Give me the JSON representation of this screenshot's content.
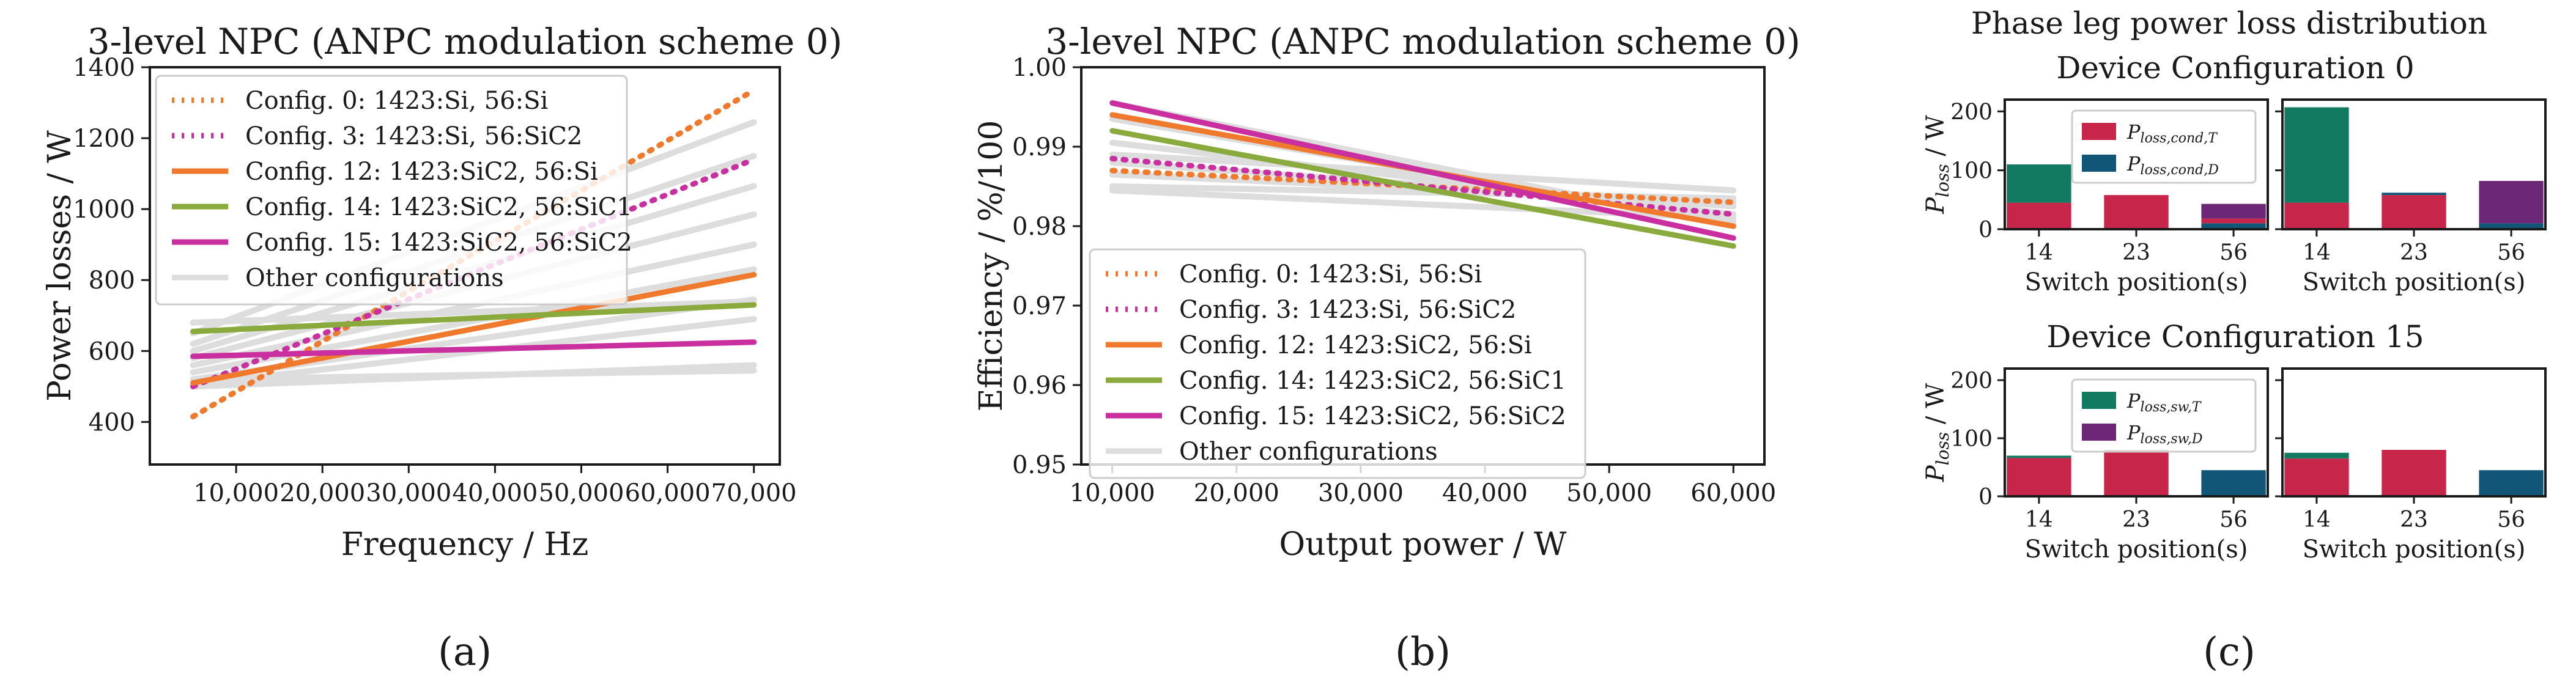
{
  "colors": {
    "orange": "#ef7a2d",
    "magenta": "#c92f9f",
    "green": "#8aaa3e",
    "grey": "#dddddd",
    "crimson": "#c7254a",
    "teal": "#127a60",
    "navy": "#115577",
    "purple": "#6c2877"
  },
  "chart_data": [
    {
      "id": "a",
      "type": "line",
      "panel_label": "(a)",
      "title": "3-level NPC (ANPC modulation scheme 0)",
      "xlabel": "Frequency / Hz",
      "ylabel": "Power losses / W",
      "xlim": [
        0,
        73000
      ],
      "ylim": [
        280,
        1400
      ],
      "xticks": [
        10000,
        20000,
        30000,
        40000,
        50000,
        60000,
        70000
      ],
      "xtick_labels": [
        "10,000",
        "20,000",
        "30,000",
        "40,000",
        "50,000",
        "60,000",
        "70,000"
      ],
      "yticks": [
        400,
        600,
        800,
        1000,
        1200,
        1400
      ],
      "ytick_labels": [
        "400",
        "600",
        "800",
        "1000",
        "1200",
        "1400"
      ],
      "grid": false,
      "legend_position": "upper-left",
      "legend": [
        {
          "label": "Config. 0: 1423:Si, 56:Si",
          "color": "orange",
          "style": "dotted"
        },
        {
          "label": "Config. 3: 1423:Si, 56:SiC2",
          "color": "magenta",
          "style": "dotted"
        },
        {
          "label": "Config. 12: 1423:SiC2, 56:Si",
          "color": "orange",
          "style": "solid"
        },
        {
          "label": "Config. 14: 1423:SiC2, 56:SiC1",
          "color": "green",
          "style": "solid"
        },
        {
          "label": "Config. 15: 1423:SiC2, 56:SiC2",
          "color": "magenta",
          "style": "solid"
        },
        {
          "label": "Other configurations",
          "color": "grey",
          "style": "solid"
        }
      ],
      "background_series": [
        {
          "x": [
            5000,
            70000
          ],
          "y": [
            650,
            1245
          ]
        },
        {
          "x": [
            5000,
            70000
          ],
          "y": [
            620,
            1150
          ]
        },
        {
          "x": [
            5000,
            70000
          ],
          "y": [
            600,
            1065
          ]
        },
        {
          "x": [
            5000,
            70000
          ],
          "y": [
            580,
            985
          ]
        },
        {
          "x": [
            5000,
            70000
          ],
          "y": [
            560,
            900
          ]
        },
        {
          "x": [
            5000,
            70000
          ],
          "y": [
            540,
            830
          ]
        },
        {
          "x": [
            5000,
            70000
          ],
          "y": [
            520,
            745
          ]
        },
        {
          "x": [
            5000,
            70000
          ],
          "y": [
            505,
            690
          ]
        },
        {
          "x": [
            5000,
            70000
          ],
          "y": [
            500,
            560
          ]
        },
        {
          "x": [
            5000,
            70000
          ],
          "y": [
            520,
            545
          ]
        },
        {
          "x": [
            5000,
            70000
          ],
          "y": [
            680,
            740
          ]
        }
      ],
      "series": [
        {
          "color": "orange",
          "style": "dotted",
          "x": [
            5000,
            70000
          ],
          "y": [
            415,
            1335
          ]
        },
        {
          "color": "magenta",
          "style": "dotted",
          "x": [
            5000,
            70000
          ],
          "y": [
            500,
            1140
          ]
        },
        {
          "color": "orange",
          "style": "solid",
          "x": [
            5000,
            70000
          ],
          "y": [
            510,
            815
          ]
        },
        {
          "color": "green",
          "style": "solid",
          "x": [
            5000,
            70000
          ],
          "y": [
            655,
            730
          ]
        },
        {
          "color": "magenta",
          "style": "solid",
          "x": [
            5000,
            70000
          ],
          "y": [
            585,
            625
          ]
        }
      ]
    },
    {
      "id": "b",
      "type": "line",
      "panel_label": "(b)",
      "title": "3-level NPC (ANPC modulation scheme 0)",
      "xlabel": "Output power / W",
      "ylabel": "Efficiency / %/100",
      "xlim": [
        7500,
        62500
      ],
      "ylim": [
        0.95,
        1.0
      ],
      "xticks": [
        10000,
        20000,
        30000,
        40000,
        50000,
        60000
      ],
      "xtick_labels": [
        "10,000",
        "20,000",
        "30,000",
        "40,000",
        "50,000",
        "60,000"
      ],
      "yticks": [
        0.95,
        0.96,
        0.97,
        0.98,
        0.99,
        1.0
      ],
      "ytick_labels": [
        "0.95",
        "0.96",
        "0.97",
        "0.98",
        "0.99",
        "1.00"
      ],
      "grid": false,
      "legend_position": "lower-left",
      "legend": [
        {
          "label": "Config. 0: 1423:Si, 56:Si",
          "color": "orange",
          "style": "dotted"
        },
        {
          "label": "Config. 3: 1423:Si, 56:SiC2",
          "color": "magenta",
          "style": "dotted"
        },
        {
          "label": "Config. 12: 1423:SiC2, 56:Si",
          "color": "orange",
          "style": "solid"
        },
        {
          "label": "Config. 14: 1423:SiC2, 56:SiC1",
          "color": "green",
          "style": "solid"
        },
        {
          "label": "Config. 15: 1423:SiC2, 56:SiC2",
          "color": "magenta",
          "style": "solid"
        },
        {
          "label": "Other configurations",
          "color": "grey",
          "style": "solid"
        }
      ],
      "background_series": [
        {
          "x": [
            10000,
            60000
          ],
          "y": [
            0.9955,
            0.98
          ]
        },
        {
          "x": [
            10000,
            60000
          ],
          "y": [
            0.9935,
            0.9805
          ]
        },
        {
          "x": [
            10000,
            60000
          ],
          "y": [
            0.9905,
            0.9815
          ]
        },
        {
          "x": [
            10000,
            60000
          ],
          "y": [
            0.988,
            0.9825
          ]
        },
        {
          "x": [
            10000,
            60000
          ],
          "y": [
            0.9865,
            0.983
          ]
        },
        {
          "x": [
            10000,
            60000
          ],
          "y": [
            0.985,
            0.9835
          ]
        },
        {
          "x": [
            10000,
            60000
          ],
          "y": [
            0.9845,
            0.981
          ]
        },
        {
          "x": [
            10000,
            60000
          ],
          "y": [
            0.989,
            0.9845
          ]
        }
      ],
      "series": [
        {
          "color": "orange",
          "style": "dotted",
          "x": [
            10000,
            60000
          ],
          "y": [
            0.987,
            0.983
          ]
        },
        {
          "color": "magenta",
          "style": "dotted",
          "x": [
            10000,
            60000
          ],
          "y": [
            0.9885,
            0.9815
          ]
        },
        {
          "color": "orange",
          "style": "solid",
          "x": [
            10000,
            60000
          ],
          "y": [
            0.994,
            0.98
          ]
        },
        {
          "color": "green",
          "style": "solid",
          "x": [
            10000,
            60000
          ],
          "y": [
            0.992,
            0.9775
          ]
        },
        {
          "color": "magenta",
          "style": "solid",
          "x": [
            10000,
            60000
          ],
          "y": [
            0.9955,
            0.9785
          ]
        }
      ]
    },
    {
      "id": "c",
      "type": "bar",
      "stacked": true,
      "panel_label": "(c)",
      "title": "Phase leg power loss distribution",
      "ylabel": "P_loss / W",
      "ylim": [
        0,
        220
      ],
      "yticks": [
        0,
        100,
        200
      ],
      "ytick_labels": [
        "0",
        "100",
        "200"
      ],
      "categories": [
        "14",
        "23",
        "56"
      ],
      "xlabel": "Switch position(s)",
      "groups": [
        {
          "subtitle": "Device Configuration 0",
          "legend": [
            {
              "label": "P",
              "sub": "loss,cond,T",
              "color": "crimson"
            },
            {
              "label": "P",
              "sub": "loss,cond,D",
              "color": "navy"
            }
          ],
          "subplots": [
            {
              "stacks": [
                [
                  {
                    "color": "crimson",
                    "value": 45
                  },
                  {
                    "color": "teal",
                    "value": 65
                  }
                ],
                [
                  {
                    "color": "crimson",
                    "value": 58
                  }
                ],
                [
                  {
                    "color": "navy",
                    "value": 10
                  },
                  {
                    "color": "crimson",
                    "value": 8
                  },
                  {
                    "color": "purple",
                    "value": 25
                  }
                ]
              ]
            },
            {
              "stacks": [
                [
                  {
                    "color": "crimson",
                    "value": 45
                  },
                  {
                    "color": "teal",
                    "value": 162
                  }
                ],
                [
                  {
                    "color": "crimson",
                    "value": 58
                  },
                  {
                    "color": "navy",
                    "value": 4
                  }
                ],
                [
                  {
                    "color": "navy",
                    "value": 10
                  },
                  {
                    "color": "purple",
                    "value": 72
                  }
                ]
              ]
            }
          ]
        },
        {
          "subtitle": "Device Configuration 15",
          "legend": [
            {
              "label": "P",
              "sub": "loss,sw,T",
              "color": "teal"
            },
            {
              "label": "P",
              "sub": "loss,sw,D",
              "color": "purple"
            }
          ],
          "subplots": [
            {
              "stacks": [
                [
                  {
                    "color": "crimson",
                    "value": 66
                  },
                  {
                    "color": "teal",
                    "value": 4
                  }
                ],
                [
                  {
                    "color": "crimson",
                    "value": 80
                  }
                ],
                [
                  {
                    "color": "navy",
                    "value": 45
                  }
                ]
              ]
            },
            {
              "stacks": [
                [
                  {
                    "color": "crimson",
                    "value": 65
                  },
                  {
                    "color": "teal",
                    "value": 10
                  }
                ],
                [
                  {
                    "color": "crimson",
                    "value": 80
                  }
                ],
                [
                  {
                    "color": "navy",
                    "value": 45
                  }
                ]
              ]
            }
          ]
        }
      ]
    }
  ]
}
